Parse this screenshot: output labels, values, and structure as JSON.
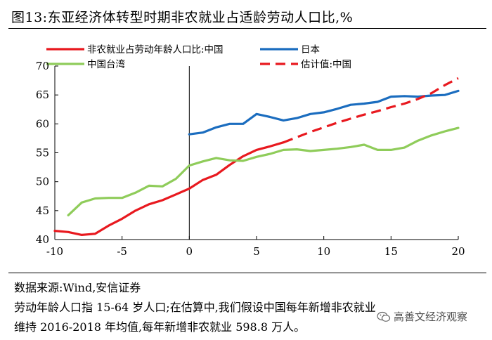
{
  "header": {
    "title": "图13:东亚经济体转型时期非农就业占适龄劳动人口比,%"
  },
  "footer": {
    "source": "数据来源:Wind,安信证券",
    "note_line1": "劳动年龄人口指 15-64 岁人口;在估算中,我们假设中国每年新增非农就业",
    "note_line2": "维持 2016-2018 年均值,每年新增非农就业 598.8 万人。",
    "watermark": "高善文经济观察",
    "watermark_icon": "wechat-icon"
  },
  "chart_data": {
    "type": "line",
    "title": "东亚经济体转型时期非农就业占适龄劳动人口比,%",
    "xlabel": "",
    "ylabel": "",
    "xlim": [
      -10,
      20
    ],
    "ylim": [
      40,
      70
    ],
    "xticks": [
      -10,
      -5,
      0,
      5,
      10,
      15,
      20
    ],
    "yticks": [
      40,
      45,
      50,
      55,
      60,
      65,
      70
    ],
    "grid": false,
    "legend_position": "top-left",
    "series": [
      {
        "name": "非农就业占劳动年龄人口比:中国",
        "color": "#e8191f",
        "dash": false,
        "x": [
          -10,
          -9,
          -8,
          -7,
          -6,
          -5,
          -4,
          -3,
          -2,
          -1,
          0,
          1,
          2,
          3,
          4,
          5,
          6,
          7
        ],
        "y": [
          41.5,
          41.3,
          40.8,
          41.0,
          42.4,
          43.6,
          45.0,
          46.1,
          46.8,
          47.8,
          48.8,
          50.3,
          51.2,
          52.9,
          54.4,
          55.5,
          56.1,
          56.8
        ]
      },
      {
        "name": "日本",
        "color": "#1b6dbf",
        "dash": false,
        "x": [
          0,
          1,
          2,
          3,
          4,
          5,
          6,
          7,
          8,
          9,
          10,
          11,
          12,
          13,
          14,
          15,
          16,
          17,
          18,
          19,
          20
        ],
        "y": [
          58.2,
          58.5,
          59.4,
          60.0,
          60.0,
          61.7,
          61.2,
          60.6,
          61.0,
          61.7,
          62.0,
          62.6,
          63.3,
          63.5,
          63.8,
          64.7,
          64.8,
          64.7,
          64.9,
          65.0,
          65.7
        ]
      },
      {
        "name": "中国台湾",
        "color": "#8fcc5a",
        "dash": false,
        "x": [
          -9,
          -8,
          -7,
          -6,
          -5,
          -4,
          -3,
          -2,
          -1,
          0,
          1,
          2,
          3,
          4,
          5,
          6,
          7,
          8,
          9,
          10,
          11,
          12,
          13,
          14,
          15,
          16,
          17,
          18,
          19,
          20
        ],
        "y": [
          44.2,
          46.4,
          47.1,
          47.2,
          47.2,
          48.1,
          49.3,
          49.2,
          50.5,
          52.8,
          53.5,
          54.1,
          53.7,
          53.6,
          54.3,
          54.8,
          55.5,
          55.6,
          55.3,
          55.5,
          55.7,
          56.0,
          56.4,
          55.5,
          55.5,
          55.9,
          57.1,
          58.0,
          58.7,
          59.3
        ]
      },
      {
        "name": "估计值:中国",
        "color": "#e8191f",
        "dash": true,
        "x": [
          7,
          8,
          9,
          10,
          11,
          12,
          13,
          14,
          15,
          16,
          17,
          18,
          19,
          20
        ],
        "y": [
          56.8,
          57.7,
          58.6,
          59.4,
          60.2,
          60.9,
          61.6,
          62.2,
          62.9,
          63.5,
          64.3,
          65.3,
          66.7,
          67.9
        ]
      }
    ]
  }
}
